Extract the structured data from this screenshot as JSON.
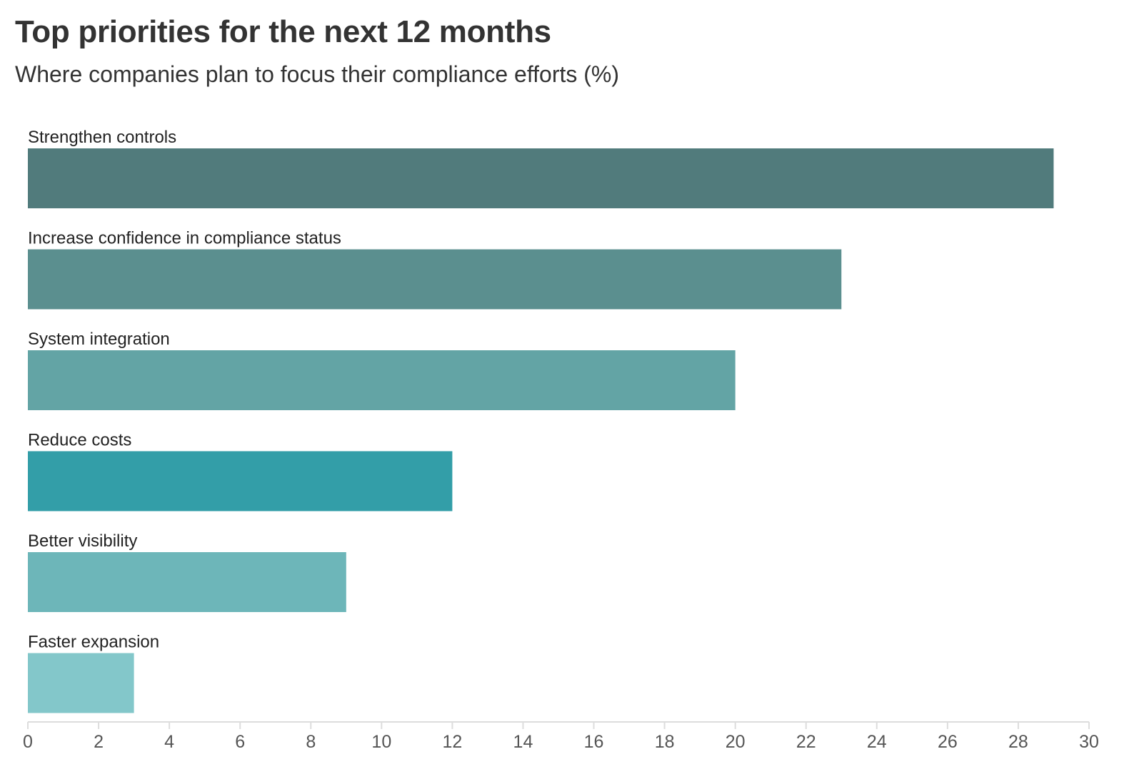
{
  "chart_data": {
    "type": "bar",
    "orientation": "horizontal",
    "title": "Top priorities for the next 12 months",
    "subtitle": "Where companies plan to focus their compliance efforts (%)",
    "xlabel": "",
    "ylabel": "",
    "categories": [
      "Strengthen controls",
      "Increase confidence in compliance status",
      "System integration",
      "Reduce costs",
      "Better visibility",
      "Faster expansion"
    ],
    "values": [
      29,
      23,
      20,
      12,
      9,
      3
    ],
    "colors": [
      "#517b7c",
      "#5b8f8f",
      "#63a4a5",
      "#339ea8",
      "#6db6b9",
      "#83c7ca"
    ],
    "xlim": [
      0,
      30
    ],
    "xticks": [
      "0",
      "2",
      "4",
      "6",
      "8",
      "10",
      "12",
      "14",
      "16",
      "18",
      "20",
      "22",
      "24",
      "26",
      "28",
      "30"
    ],
    "grid": false,
    "legend": "none",
    "axis_color": "#dddddd"
  }
}
